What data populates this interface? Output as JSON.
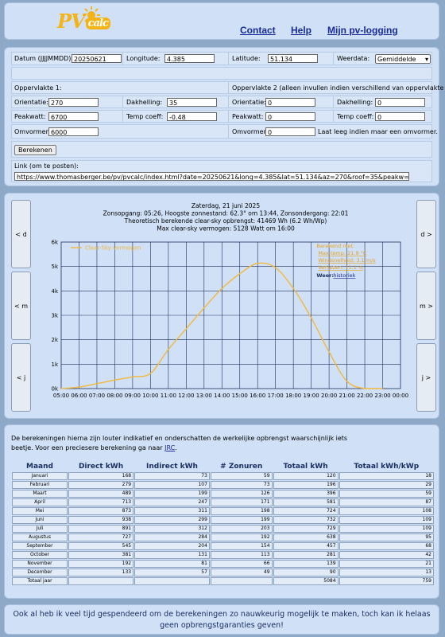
{
  "header": {
    "logo_pv": "PV",
    "logo_calc": "calc",
    "nav": [
      "Contact",
      "Help",
      "Mijn pv-logging"
    ]
  },
  "form": {
    "date_label": "Datum (JJJJMMDD):",
    "date_value": "20250621",
    "longitude_label": "Longitude:",
    "longitude_value": "4.385",
    "latitude_label": "Latitude:",
    "latitude_value": "51.134",
    "weather_label": "Weerdata:",
    "weather_value": "Gemiddelde",
    "surface1_title": "Oppervlakte 1:",
    "surface2_title": "Oppervlakte 2 (alleen invullen indien verschillend van oppervlakte 1):",
    "orientation_label": "Orientatie:",
    "orientation1": "270",
    "orientation2": "0",
    "slope_label": "Dakhelling:",
    "slope1": "35",
    "slope2": "0",
    "peak_label": "Peakwatt:",
    "peak1": "6700",
    "peak2": "0",
    "temp_label": "Temp coeff:",
    "temp1": "-0.48",
    "temp2": "0",
    "inverter_label": "Omvormer:",
    "inverter1": "6000",
    "inverter2": "0",
    "inverter_note": "Laat leeg indien maar een omvormer.",
    "calc_button": "Berekenen",
    "link_label": "Link (om te posten):",
    "link_value": "https://www.thomasberger.be/pv/pvcalc/index.html?date=20250621&long=4.385&lat=51.134&az=270&roof=35&peakw=6700&temp_co"
  },
  "nav_buttons": {
    "prev_day": "< d",
    "prev_month": "< m",
    "prev_year": "< j",
    "next_day": "d >",
    "next_month": "m >",
    "next_year": "j >"
  },
  "chart_data": {
    "type": "line",
    "title_lines": [
      "Zaterdag, 21 juni 2025",
      "Zonsopgang: 05:26, Hoogste zonnestand: 62.3° om 13:44, Zonsondergang: 22:01",
      "Theoretisch berekende clear-sky opbrengst: 41469 Wh (6.2 Wh/Wp)",
      "Max clear-sky vermogen: 5128 Watt om 16:00"
    ],
    "series": [
      {
        "name": "Clear-Sky vermogen",
        "color": "#f2b93b",
        "x": [
          "05:00",
          "06:00",
          "07:00",
          "08:00",
          "09:00",
          "10:00",
          "11:00",
          "12:00",
          "13:00",
          "14:00",
          "15:00",
          "16:00",
          "17:00",
          "18:00",
          "19:00",
          "20:00",
          "21:00",
          "22:00",
          "23:00"
        ],
        "values": [
          0,
          60,
          200,
          350,
          480,
          620,
          1600,
          2450,
          3300,
          4100,
          4700,
          5128,
          4950,
          4100,
          2900,
          1500,
          300,
          0,
          0
        ]
      }
    ],
    "xticks": [
      "05:00",
      "06:00",
      "07:00",
      "08:00",
      "09:00",
      "10:00",
      "11:00",
      "12:00",
      "13:00",
      "14:00",
      "15:00",
      "16:00",
      "17:00",
      "18:00",
      "19:00",
      "20:00",
      "21:00",
      "22:00",
      "23:00",
      "00:00"
    ],
    "yticks": [
      "0k",
      "1k",
      "2k",
      "3k",
      "4k",
      "5k",
      "6k"
    ],
    "ylim": [
      0,
      6000
    ],
    "grid": true,
    "legend": "top-left",
    "side_legend": {
      "title": "Berekend met:",
      "lines": [
        "Max temp: 21.9 °C",
        "Windsnelheid: 3.1 m/s",
        "Verliezen: 11.1 %"
      ],
      "weather_label": "Weer:",
      "weather_link": "historiek"
    }
  },
  "table_section": {
    "disclaimer": "De berekeningen hierna zijn louter indikatief en onderschatten de werkelijke opbrengst waarschijnlijk iets beetje. Voor een preciesere berekening ga naar",
    "disclaimer_link": "JRC",
    "headers": [
      "Maand",
      "Direct kWh",
      "Indirect kWh",
      "# Zonuren",
      "Totaal kWh",
      "Totaal kWh/kWp"
    ],
    "rows": [
      [
        "Januari",
        "168",
        "73",
        "59",
        "120",
        "18"
      ],
      [
        "Februari",
        "279",
        "107",
        "73",
        "196",
        "29"
      ],
      [
        "Maart",
        "489",
        "199",
        "126",
        "396",
        "59"
      ],
      [
        "April",
        "713",
        "247",
        "171",
        "581",
        "87"
      ],
      [
        "Mei",
        "873",
        "311",
        "198",
        "724",
        "108"
      ],
      [
        "Juni",
        "938",
        "299",
        "199",
        "732",
        "109"
      ],
      [
        "Juli",
        "891",
        "312",
        "203",
        "729",
        "109"
      ],
      [
        "Augustus",
        "727",
        "284",
        "192",
        "638",
        "95"
      ],
      [
        "September",
        "545",
        "204",
        "154",
        "457",
        "68"
      ],
      [
        "October",
        "381",
        "131",
        "113",
        "281",
        "42"
      ],
      [
        "November",
        "192",
        "81",
        "66",
        "139",
        "21"
      ],
      [
        "December",
        "133",
        "57",
        "49",
        "90",
        "13"
      ],
      [
        "Totaal jaar",
        "",
        "",
        "",
        "5084",
        "759"
      ]
    ]
  },
  "footer": "Ook al heb ik veel tijd gespendeerd om de berekeningen zo nauwkeurig mogelijk te maken, toch kan ik helaas geen opbrengstgaranties geven!"
}
